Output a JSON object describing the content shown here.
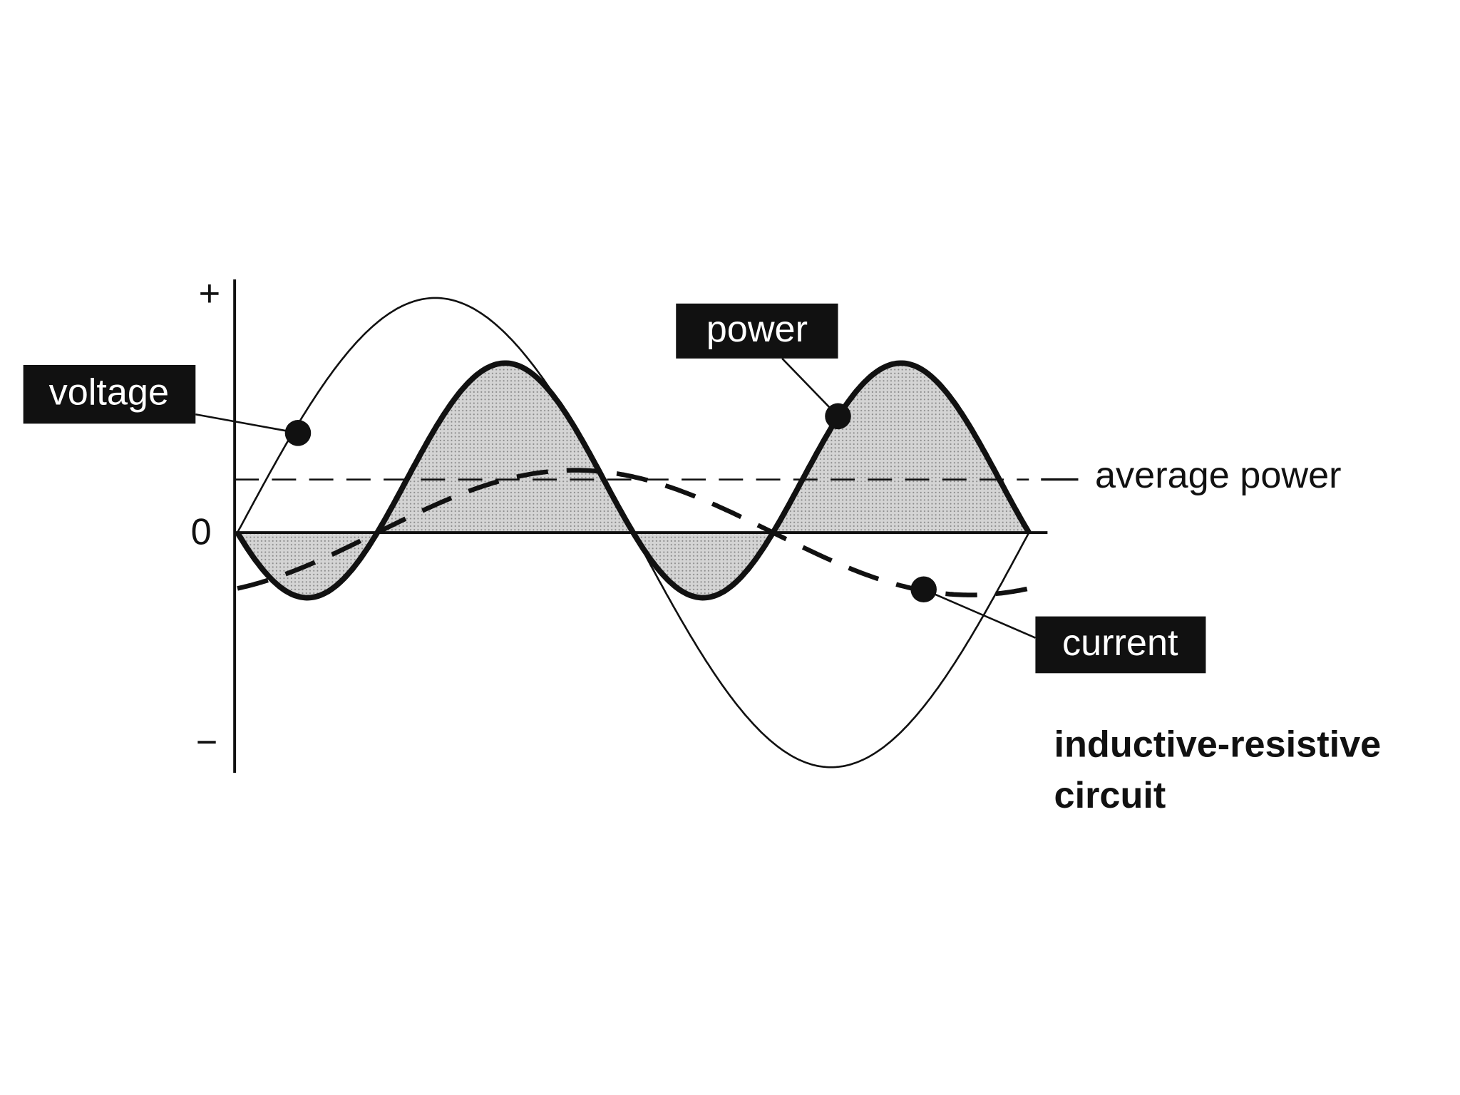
{
  "axis": {
    "plus": "+",
    "zero": "0",
    "minus": "−"
  },
  "labels": {
    "voltage": "voltage",
    "power": "power",
    "current": "current",
    "average_power": "average power"
  },
  "caption": {
    "line1": "inductive-resistive",
    "line2": "circuit"
  }
}
